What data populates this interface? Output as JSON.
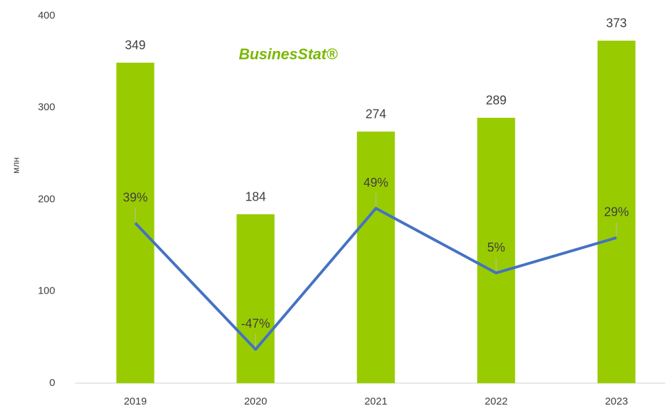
{
  "chart_data": {
    "type": "bar+line",
    "y_axis_label": "млн",
    "watermark": "BusinesStat®",
    "categories": [
      "2019",
      "2020",
      "2021",
      "2022",
      "2023"
    ],
    "series": [
      {
        "name": "млн",
        "type": "bar",
        "color": "#99cc00",
        "values": [
          349,
          184,
          274,
          289,
          373
        ]
      },
      {
        "name": "%",
        "type": "line",
        "color": "#4472c4",
        "axis": "y2",
        "values": [
          39,
          -47,
          49,
          5,
          29
        ],
        "value_labels": [
          "39%",
          "-47%",
          "49%",
          "5%",
          "29%"
        ]
      }
    ],
    "ylim": [
      0,
      400
    ],
    "yticks": [
      0,
      100,
      200,
      300,
      400
    ],
    "y2lim": [
      -70,
      180
    ],
    "grid": false
  }
}
